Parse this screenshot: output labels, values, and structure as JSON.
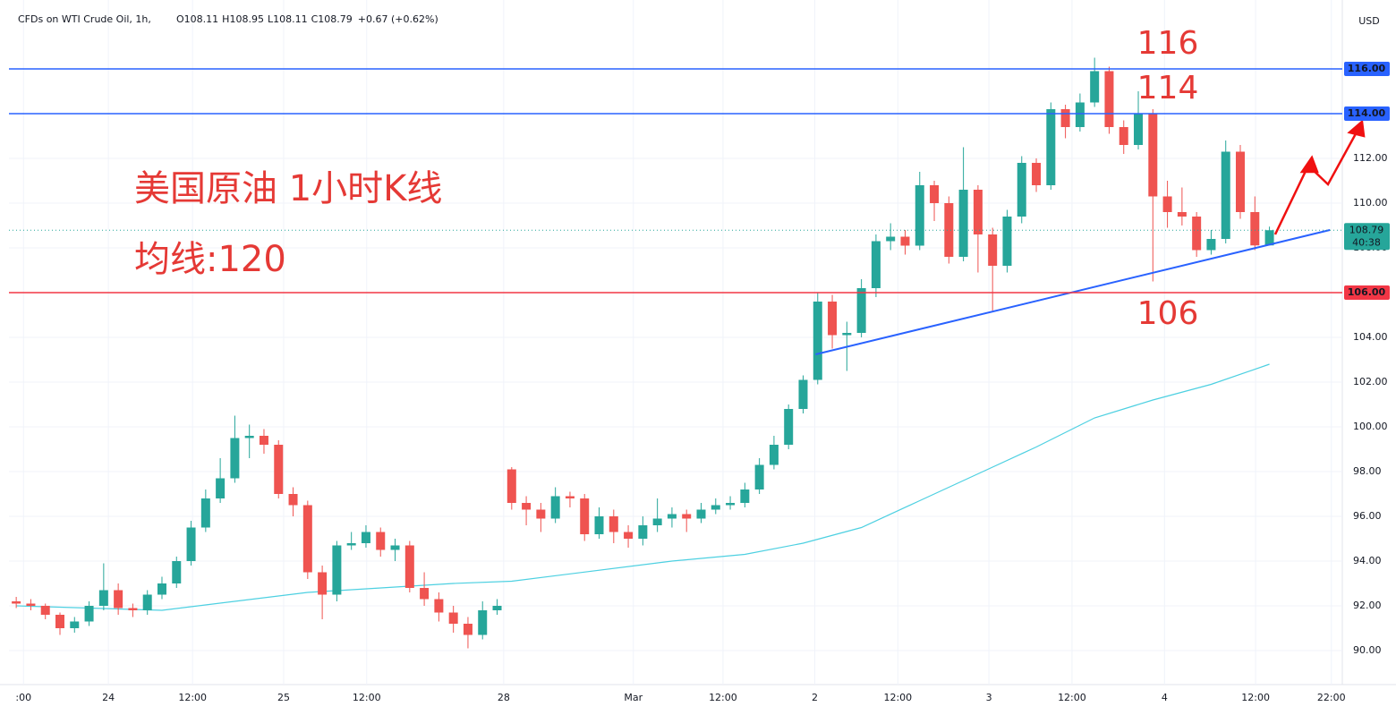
{
  "chart_data": {
    "type": "candlestick",
    "title": "CFDs on WTI Crude Oil, 1h,",
    "ohlc": {
      "open_label": "O",
      "open": 108.11,
      "high_label": "H",
      "high": 108.95,
      "low_label": "L",
      "low": 108.11,
      "close_label": "C",
      "close": 108.79,
      "change": {
        "value": 0.67,
        "label": "+0.67 (+0.62%)"
      }
    },
    "currency": "USD",
    "up_color": "#26a69a",
    "down_color": "#ef5350",
    "x": [
      0,
      2,
      4,
      6,
      8,
      10,
      12,
      14,
      16,
      18,
      20,
      22,
      24,
      26,
      28,
      30,
      32,
      34,
      36,
      38,
      40,
      42,
      44,
      46,
      48,
      50,
      52,
      54,
      56,
      58,
      60,
      62,
      64,
      66,
      68,
      70,
      72,
      74,
      76,
      78,
      80,
      82,
      84,
      86,
      88,
      90,
      92,
      94,
      96,
      98,
      100,
      102,
      104,
      106,
      108,
      110,
      112,
      114,
      116,
      118,
      120,
      122,
      124,
      126,
      128,
      130,
      132,
      134,
      136,
      138,
      140,
      142,
      144,
      146,
      148,
      150,
      152,
      154,
      156,
      158,
      160,
      162,
      164,
      166,
      168,
      170,
      172
    ],
    "open": [
      92.2,
      92.1,
      92.0,
      91.6,
      91.0,
      91.3,
      92.0,
      92.7,
      91.9,
      91.8,
      92.5,
      93.0,
      94.0,
      95.5,
      96.8,
      97.7,
      99.5,
      99.6,
      99.2,
      97.0,
      96.5,
      93.5,
      92.5,
      94.7,
      94.8,
      95.3,
      94.5,
      94.7,
      92.8,
      92.3,
      91.7,
      91.2,
      90.7,
      91.8,
      98.1,
      96.6,
      96.3,
      95.9,
      96.9,
      96.8,
      95.2,
      96.0,
      95.3,
      95.0,
      95.6,
      95.9,
      96.1,
      95.9,
      96.3,
      96.5,
      96.6,
      97.2,
      98.3,
      99.2,
      100.8,
      102.1,
      105.6,
      104.1,
      104.2,
      106.2,
      108.3,
      108.5,
      108.1,
      110.8,
      110.0,
      107.6,
      110.6,
      108.6,
      107.2,
      109.4,
      111.8,
      110.8,
      114.2,
      113.4,
      114.5,
      115.9,
      113.4,
      112.6,
      114.0,
      110.3,
      109.6,
      109.4,
      107.9,
      108.4,
      112.3,
      109.6,
      108.11
    ],
    "high": [
      92.4,
      92.3,
      92.1,
      91.7,
      91.5,
      92.2,
      93.9,
      93.0,
      92.1,
      92.7,
      93.3,
      94.2,
      95.8,
      97.2,
      98.6,
      100.5,
      100.1,
      99.9,
      99.4,
      97.3,
      96.7,
      93.8,
      94.9,
      95.3,
      95.6,
      95.5,
      95.0,
      94.9,
      93.5,
      92.6,
      92.0,
      91.5,
      92.2,
      92.3,
      98.2,
      96.9,
      96.6,
      97.3,
      97.1,
      97.0,
      96.4,
      96.3,
      95.6,
      96.0,
      96.8,
      96.4,
      96.3,
      96.6,
      96.8,
      96.9,
      97.5,
      98.6,
      99.6,
      101.0,
      102.3,
      106.0,
      105.9,
      104.7,
      106.6,
      108.6,
      109.1,
      108.8,
      111.4,
      111.0,
      110.3,
      112.5,
      110.8,
      108.9,
      109.7,
      112.1,
      112.0,
      114.5,
      114.4,
      114.9,
      116.5,
      116.1,
      113.7,
      115.0,
      114.2,
      111.0,
      110.7,
      109.6,
      108.8,
      112.8,
      112.6,
      110.3,
      108.95
    ],
    "low": [
      91.9,
      91.8,
      91.4,
      90.7,
      90.8,
      91.1,
      91.8,
      91.6,
      91.5,
      91.6,
      92.3,
      92.8,
      93.8,
      95.3,
      96.6,
      97.5,
      98.6,
      98.8,
      96.8,
      96.0,
      93.2,
      91.4,
      92.2,
      94.5,
      94.6,
      94.2,
      94.0,
      92.6,
      92.0,
      91.3,
      90.8,
      90.1,
      90.5,
      91.6,
      96.3,
      95.6,
      95.3,
      95.7,
      96.4,
      94.9,
      95.0,
      94.8,
      94.6,
      94.7,
      95.3,
      95.5,
      95.3,
      95.7,
      96.1,
      96.3,
      96.4,
      97.0,
      98.1,
      99.0,
      100.6,
      101.9,
      103.5,
      102.5,
      104.0,
      105.8,
      107.9,
      107.7,
      107.9,
      109.2,
      107.3,
      107.4,
      106.9,
      105.2,
      106.9,
      109.1,
      110.5,
      110.6,
      112.9,
      113.2,
      114.3,
      113.1,
      112.2,
      112.4,
      106.5,
      108.9,
      109.0,
      107.6,
      107.7,
      108.2,
      109.3,
      107.9,
      108.11
    ],
    "close": [
      92.1,
      92.0,
      91.6,
      91.0,
      91.3,
      92.0,
      92.7,
      91.9,
      91.8,
      92.5,
      93.0,
      94.0,
      95.5,
      96.8,
      97.7,
      99.5,
      99.6,
      99.2,
      97.0,
      96.5,
      93.5,
      92.5,
      94.7,
      94.8,
      95.3,
      94.5,
      94.7,
      92.8,
      92.3,
      91.7,
      91.2,
      90.7,
      91.8,
      92.0,
      96.6,
      96.3,
      95.9,
      96.9,
      96.8,
      95.2,
      96.0,
      95.3,
      95.0,
      95.6,
      95.9,
      96.1,
      95.9,
      96.3,
      96.5,
      96.6,
      97.2,
      98.3,
      99.2,
      100.8,
      102.1,
      105.6,
      104.1,
      104.2,
      106.2,
      108.3,
      108.5,
      108.1,
      110.8,
      110.0,
      107.6,
      110.6,
      108.6,
      107.2,
      109.4,
      111.8,
      110.8,
      114.2,
      113.4,
      114.5,
      115.9,
      113.4,
      112.6,
      114.0,
      110.3,
      109.6,
      109.4,
      107.9,
      108.4,
      112.3,
      109.6,
      108.11,
      108.79
    ],
    "ma": {
      "color": "#4dd0e1",
      "x": [
        0,
        20,
        40,
        60,
        68,
        90,
        100,
        108,
        116,
        124,
        132,
        140,
        148,
        156,
        164,
        172
      ],
      "values": [
        92.0,
        91.8,
        92.6,
        93.0,
        93.1,
        94.0,
        94.3,
        94.8,
        95.5,
        96.7,
        97.9,
        99.1,
        100.4,
        101.2,
        101.9,
        102.8
      ]
    },
    "trendline": {
      "color": "#2962ff",
      "x": [
        109.7,
        180.3
      ],
      "y": [
        103.24,
        108.8
      ]
    },
    "levels": [
      {
        "value": 116,
        "label": "116.00",
        "color": "#2962ff"
      },
      {
        "value": 114,
        "label": "114.00",
        "color": "#2962ff"
      },
      {
        "value": 106,
        "label": "106.00",
        "color": "#f23645"
      }
    ],
    "last_price": 108.79,
    "countdown": "40:38",
    "annotations": [
      "116",
      "114",
      "106",
      "美国原油 1小时K线",
      "均线:120"
    ],
    "xlim": [
      -1,
      182
    ],
    "xticks": [
      {
        "value": 1,
        "label": ":00"
      },
      {
        "value": 12.65,
        "label": "24"
      },
      {
        "value": 24.2,
        "label": "12:00"
      },
      {
        "value": 36.7,
        "label": "25"
      },
      {
        "value": 48.1,
        "label": "12:00"
      },
      {
        "value": 66.9,
        "label": "28"
      },
      {
        "value": 84.7,
        "label": "Mar"
      },
      {
        "value": 97,
        "label": "12:00"
      },
      {
        "value": 109.6,
        "label": "2"
      },
      {
        "value": 121,
        "label": "12:00"
      },
      {
        "value": 133.5,
        "label": "3"
      },
      {
        "value": 144.9,
        "label": "12:00"
      },
      {
        "value": 157.6,
        "label": "4"
      },
      {
        "value": 170.1,
        "label": "12:00"
      },
      {
        "value": 180.5,
        "label": "22:00"
      }
    ],
    "ylim": [
      88.48,
      119.08
    ],
    "yticks": [
      {
        "value": 90,
        "label": "90.00"
      },
      {
        "value": 92,
        "label": "92.00"
      },
      {
        "value": 94,
        "label": "94.00"
      },
      {
        "value": 96,
        "label": "96.00"
      },
      {
        "value": 98,
        "label": "98.00"
      },
      {
        "value": 100,
        "label": "100.00"
      },
      {
        "value": 102,
        "label": "102.00"
      },
      {
        "value": 104,
        "label": "104.00"
      },
      {
        "value": 108,
        "label": "108.00"
      },
      {
        "value": 110,
        "label": "110.00"
      },
      {
        "value": 112,
        "label": "112.00"
      }
    ],
    "grid": true
  }
}
